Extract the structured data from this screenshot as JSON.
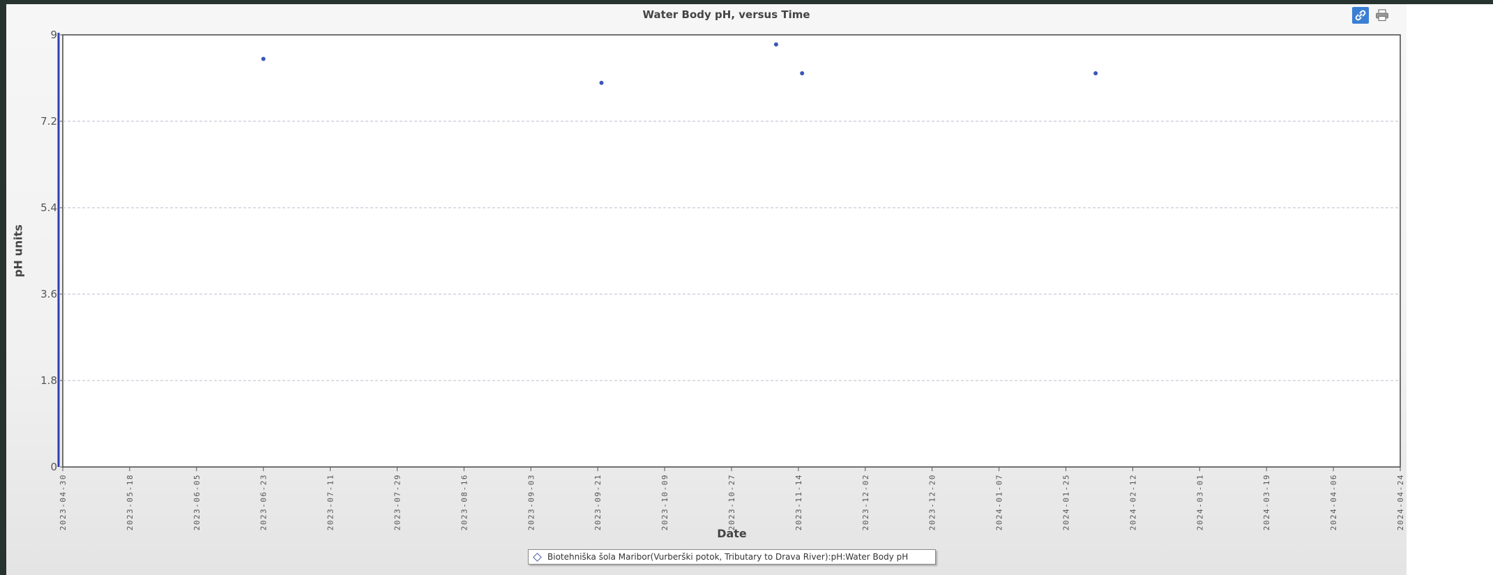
{
  "chart_data": {
    "type": "scatter",
    "title": "Water Body pH, versus Time",
    "xlabel": "Date",
    "ylabel": "pH units",
    "ylim": [
      0,
      9
    ],
    "yticks": [
      "0",
      "1.8",
      "3.6",
      "5.4",
      "7.2",
      "9"
    ],
    "xlim": [
      "2023-04-30",
      "2024-04-24"
    ],
    "xticks": [
      "2023-04-30",
      "2023-05-18",
      "2023-06-05",
      "2023-06-23",
      "2023-07-11",
      "2023-07-29",
      "2023-08-16",
      "2023-09-03",
      "2023-09-21",
      "2023-10-09",
      "2023-10-27",
      "2023-11-14",
      "2023-12-02",
      "2023-12-20",
      "2024-01-07",
      "2024-01-25",
      "2024-02-12",
      "2024-03-01",
      "2024-03-19",
      "2024-04-06",
      "2024-04-24"
    ],
    "grid": true,
    "legend_position": "bottom",
    "series": [
      {
        "name": "Biotehniška šola Maribor(Vurberški potok, Tributary to Drava River):pH:Water Body pH",
        "color": "#3c57b5",
        "points": [
          {
            "x": "2023-06-23",
            "y": 8.5
          },
          {
            "x": "2023-09-22",
            "y": 8.0
          },
          {
            "x": "2023-11-08",
            "y": 8.8
          },
          {
            "x": "2023-11-15",
            "y": 8.2
          },
          {
            "x": "2024-02-02",
            "y": 8.2
          }
        ]
      }
    ]
  },
  "toolbar": {
    "link_icon": "link-icon",
    "print_icon": "print-icon"
  }
}
